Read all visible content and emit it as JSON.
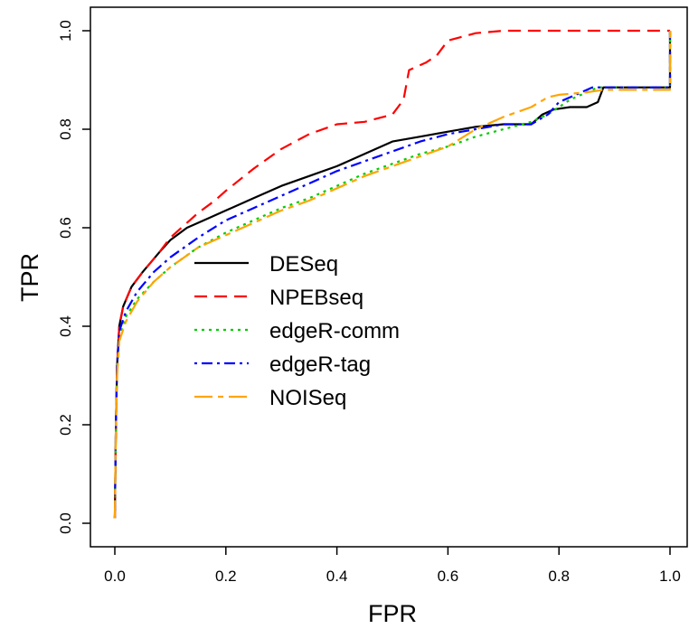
{
  "chart_data": {
    "type": "line",
    "title": "",
    "xlabel": "FPR",
    "ylabel": "TPR",
    "xlim": [
      0.0,
      1.0
    ],
    "ylim": [
      0.0,
      1.0
    ],
    "x_ticks": [
      "0.0",
      "0.2",
      "0.4",
      "0.6",
      "0.8",
      "1.0"
    ],
    "y_ticks": [
      "0.0",
      "0.2",
      "0.4",
      "0.6",
      "0.8",
      "1.0"
    ],
    "grid": false,
    "legend_position": "center-left",
    "series": [
      {
        "name": "DESeq",
        "color": "#000000",
        "dash": "solid",
        "points": [
          [
            0,
            0.01
          ],
          [
            0.002,
            0.2
          ],
          [
            0.004,
            0.32
          ],
          [
            0.008,
            0.4
          ],
          [
            0.015,
            0.44
          ],
          [
            0.03,
            0.48
          ],
          [
            0.05,
            0.51
          ],
          [
            0.08,
            0.55
          ],
          [
            0.1,
            0.575
          ],
          [
            0.13,
            0.6
          ],
          [
            0.17,
            0.62
          ],
          [
            0.2,
            0.635
          ],
          [
            0.25,
            0.66
          ],
          [
            0.3,
            0.685
          ],
          [
            0.35,
            0.705
          ],
          [
            0.4,
            0.725
          ],
          [
            0.45,
            0.75
          ],
          [
            0.5,
            0.775
          ],
          [
            0.55,
            0.785
          ],
          [
            0.6,
            0.795
          ],
          [
            0.65,
            0.805
          ],
          [
            0.7,
            0.81
          ],
          [
            0.75,
            0.81
          ],
          [
            0.77,
            0.83
          ],
          [
            0.79,
            0.84
          ],
          [
            0.82,
            0.845
          ],
          [
            0.85,
            0.845
          ],
          [
            0.87,
            0.855
          ],
          [
            0.88,
            0.885
          ],
          [
            0.9,
            0.885
          ],
          [
            0.95,
            0.885
          ],
          [
            0.995,
            0.885
          ],
          [
            1.0,
            0.885
          ],
          [
            1.0,
            1.0
          ]
        ]
      },
      {
        "name": "NPEBseq",
        "color": "#ff0000",
        "dash": "dashed",
        "points": [
          [
            0,
            0.01
          ],
          [
            0.002,
            0.2
          ],
          [
            0.004,
            0.32
          ],
          [
            0.008,
            0.4
          ],
          [
            0.015,
            0.44
          ],
          [
            0.03,
            0.48
          ],
          [
            0.05,
            0.51
          ],
          [
            0.08,
            0.55
          ],
          [
            0.1,
            0.58
          ],
          [
            0.13,
            0.61
          ],
          [
            0.15,
            0.63
          ],
          [
            0.18,
            0.655
          ],
          [
            0.2,
            0.675
          ],
          [
            0.25,
            0.72
          ],
          [
            0.3,
            0.76
          ],
          [
            0.35,
            0.79
          ],
          [
            0.4,
            0.81
          ],
          [
            0.45,
            0.815
          ],
          [
            0.5,
            0.83
          ],
          [
            0.52,
            0.86
          ],
          [
            0.53,
            0.92
          ],
          [
            0.56,
            0.935
          ],
          [
            0.58,
            0.95
          ],
          [
            0.6,
            0.98
          ],
          [
            0.65,
            0.995
          ],
          [
            0.7,
            1.0
          ],
          [
            0.8,
            1.0
          ],
          [
            0.9,
            1.0
          ],
          [
            1.0,
            1.0
          ]
        ]
      },
      {
        "name": "edgeR-comm",
        "color": "#00cc00",
        "dash": "dotted",
        "points": [
          [
            0,
            0.01
          ],
          [
            0.002,
            0.2
          ],
          [
            0.004,
            0.32
          ],
          [
            0.008,
            0.38
          ],
          [
            0.02,
            0.42
          ],
          [
            0.04,
            0.455
          ],
          [
            0.07,
            0.49
          ],
          [
            0.1,
            0.52
          ],
          [
            0.15,
            0.56
          ],
          [
            0.2,
            0.59
          ],
          [
            0.25,
            0.615
          ],
          [
            0.3,
            0.64
          ],
          [
            0.35,
            0.66
          ],
          [
            0.4,
            0.685
          ],
          [
            0.45,
            0.71
          ],
          [
            0.5,
            0.73
          ],
          [
            0.55,
            0.75
          ],
          [
            0.6,
            0.765
          ],
          [
            0.65,
            0.785
          ],
          [
            0.7,
            0.8
          ],
          [
            0.75,
            0.815
          ],
          [
            0.78,
            0.83
          ],
          [
            0.82,
            0.86
          ],
          [
            0.85,
            0.875
          ],
          [
            0.87,
            0.885
          ],
          [
            0.9,
            0.885
          ],
          [
            0.95,
            0.885
          ],
          [
            1.0,
            0.885
          ],
          [
            1.0,
            1.0
          ]
        ]
      },
      {
        "name": "edgeR-tag",
        "color": "#0000ff",
        "dash": "dotdash",
        "points": [
          [
            0,
            0.01
          ],
          [
            0.002,
            0.2
          ],
          [
            0.004,
            0.32
          ],
          [
            0.008,
            0.39
          ],
          [
            0.02,
            0.43
          ],
          [
            0.04,
            0.47
          ],
          [
            0.07,
            0.51
          ],
          [
            0.1,
            0.54
          ],
          [
            0.15,
            0.58
          ],
          [
            0.2,
            0.615
          ],
          [
            0.25,
            0.64
          ],
          [
            0.3,
            0.665
          ],
          [
            0.35,
            0.69
          ],
          [
            0.4,
            0.715
          ],
          [
            0.45,
            0.735
          ],
          [
            0.5,
            0.755
          ],
          [
            0.55,
            0.775
          ],
          [
            0.6,
            0.79
          ],
          [
            0.65,
            0.8
          ],
          [
            0.7,
            0.81
          ],
          [
            0.75,
            0.81
          ],
          [
            0.78,
            0.83
          ],
          [
            0.8,
            0.855
          ],
          [
            0.83,
            0.87
          ],
          [
            0.86,
            0.885
          ],
          [
            0.9,
            0.885
          ],
          [
            0.95,
            0.885
          ],
          [
            1.0,
            0.885
          ],
          [
            1.0,
            1.0
          ]
        ]
      },
      {
        "name": "NOISeq",
        "color": "#ffa500",
        "dash": "longdash",
        "points": [
          [
            0,
            0.01
          ],
          [
            0.002,
            0.2
          ],
          [
            0.004,
            0.3
          ],
          [
            0.008,
            0.37
          ],
          [
            0.02,
            0.41
          ],
          [
            0.04,
            0.45
          ],
          [
            0.07,
            0.49
          ],
          [
            0.1,
            0.52
          ],
          [
            0.15,
            0.56
          ],
          [
            0.2,
            0.585
          ],
          [
            0.25,
            0.61
          ],
          [
            0.3,
            0.635
          ],
          [
            0.35,
            0.655
          ],
          [
            0.4,
            0.68
          ],
          [
            0.45,
            0.705
          ],
          [
            0.5,
            0.725
          ],
          [
            0.55,
            0.745
          ],
          [
            0.6,
            0.765
          ],
          [
            0.65,
            0.8
          ],
          [
            0.7,
            0.825
          ],
          [
            0.75,
            0.845
          ],
          [
            0.78,
            0.865
          ],
          [
            0.8,
            0.87
          ],
          [
            0.85,
            0.875
          ],
          [
            0.88,
            0.88
          ],
          [
            0.9,
            0.88
          ],
          [
            0.95,
            0.88
          ],
          [
            1.0,
            0.88
          ],
          [
            1.0,
            1.0
          ]
        ]
      }
    ]
  }
}
